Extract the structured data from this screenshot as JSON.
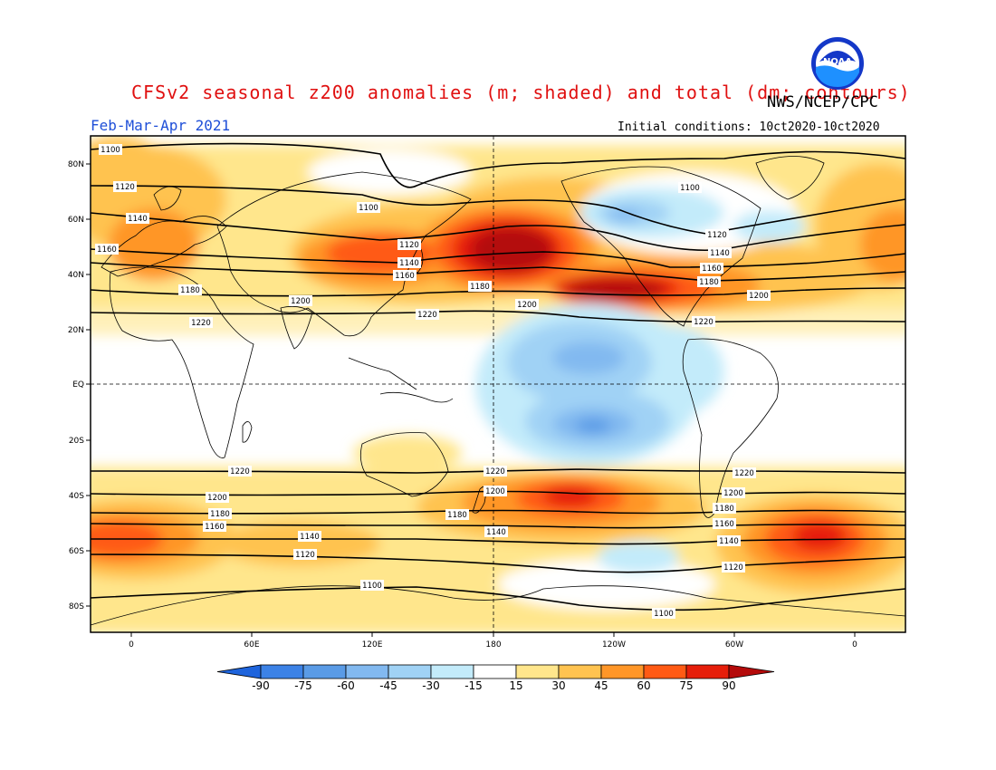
{
  "title": "CFSv2 seasonal z200 anomalies (m; shaded) and total (dm; contours)",
  "agency": "NWS/NCEP/CPC",
  "season": "Feb-Mar-Apr 2021",
  "initial_conditions": "Initial conditions: 10ct2020-10ct2020",
  "logo_text": "NOAA",
  "lat_labels": [
    "80N",
    "60N",
    "40N",
    "20N",
    "EQ",
    "20S",
    "40S",
    "60S",
    "80S"
  ],
  "lon_labels": [
    "0",
    "60E",
    "120E",
    "180",
    "120W",
    "60W",
    "0"
  ],
  "colorbar": {
    "ticks": [
      "-90",
      "-75",
      "-60",
      "-45",
      "-30",
      "-15",
      "15",
      "30",
      "45",
      "60",
      "75",
      "90"
    ],
    "colors": [
      "#1e64dc",
      "#3c82e6",
      "#5a9be6",
      "#82b9f0",
      "#a0d2f5",
      "#c3ebfa",
      "#ffffff",
      "#ffe68c",
      "#ffc350",
      "#ff9628",
      "#ff5a14",
      "#e61e0a",
      "#b40a0a"
    ]
  },
  "contours": [
    {
      "label": "1100",
      "hemisphere": "N"
    },
    {
      "label": "1120",
      "hemisphere": "N"
    },
    {
      "label": "1140",
      "hemisphere": "N"
    },
    {
      "label": "1160",
      "hemisphere": "N"
    },
    {
      "label": "1180",
      "hemisphere": "N"
    },
    {
      "label": "1200",
      "hemisphere": "N"
    },
    {
      "label": "1220",
      "hemisphere": "N"
    },
    {
      "label": "1220",
      "hemisphere": "S"
    },
    {
      "label": "1200",
      "hemisphere": "S"
    },
    {
      "label": "1180",
      "hemisphere": "S"
    },
    {
      "label": "1160",
      "hemisphere": "S"
    },
    {
      "label": "1140",
      "hemisphere": "S"
    },
    {
      "label": "1120",
      "hemisphere": "S"
    },
    {
      "label": "1100",
      "hemisphere": "S"
    }
  ]
}
